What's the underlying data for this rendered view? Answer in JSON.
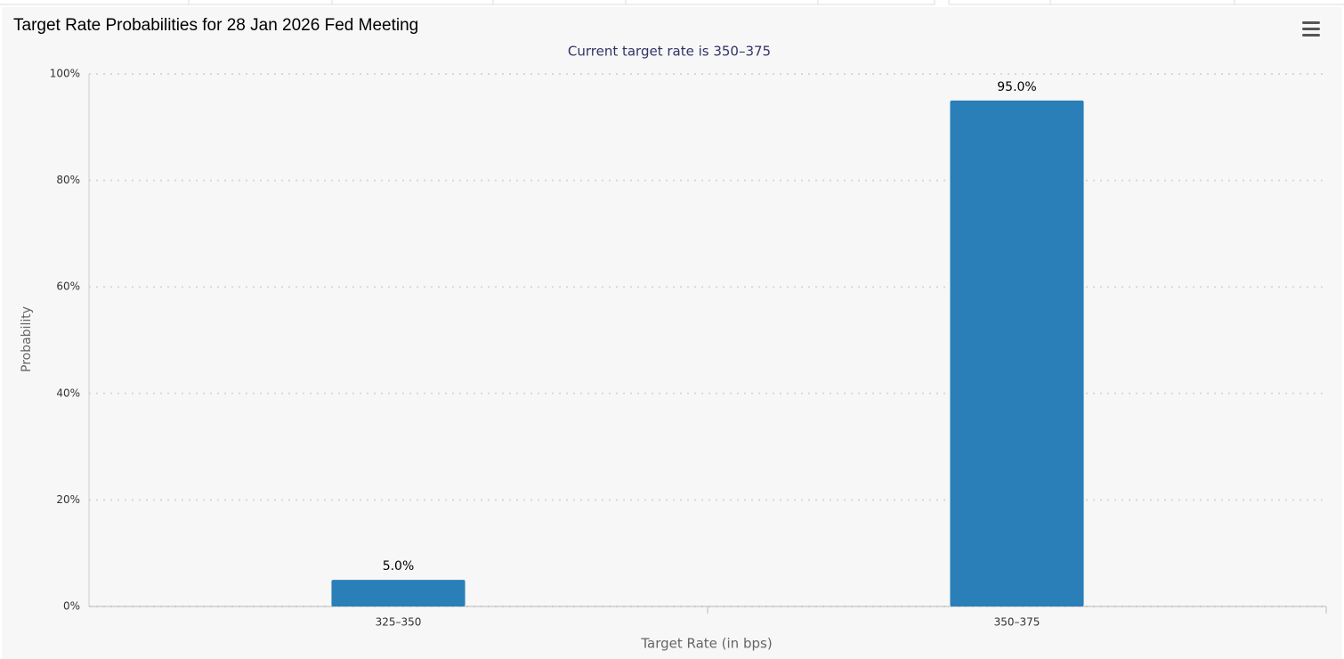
{
  "chart_data": {
    "type": "bar",
    "title": "Target Rate Probabilities for 28 Jan 2026 Fed Meeting",
    "subtitle": "Current target rate is 350–375",
    "x_label": "Target Rate (in bps)",
    "y_label": "Probability",
    "categories": [
      "325–350",
      "350–375"
    ],
    "values": [
      5.0,
      95.0
    ],
    "value_labels": [
      "5.0%",
      "95.0%"
    ],
    "color": "#2a7fb8",
    "ylim": [
      0,
      100
    ],
    "yticks": [
      {
        "value": 0,
        "label": "0%"
      },
      {
        "value": 20,
        "label": "20%"
      },
      {
        "value": 40,
        "label": "40%"
      },
      {
        "value": 60,
        "label": "60%"
      },
      {
        "value": 80,
        "label": "80%"
      },
      {
        "value": 100,
        "label": "100%"
      }
    ],
    "grid": true
  }
}
